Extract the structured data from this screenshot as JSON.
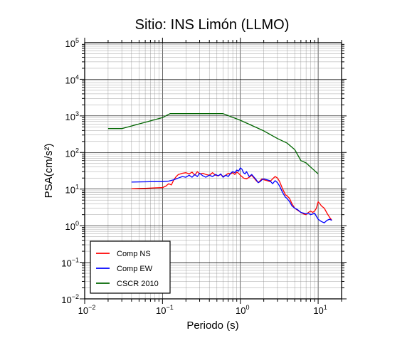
{
  "chart_data": {
    "type": "line",
    "title": "Sitio: INS Limón (LLMO)",
    "xlabel": "Periodo (s)",
    "ylabel": "PSA(cm/s²)",
    "xscale": "log",
    "yscale": "log",
    "xlim": [
      0.01,
      20
    ],
    "ylim": [
      0.01,
      100000
    ],
    "grid": true,
    "legend_position": "bottom-left",
    "x_ticks": [
      {
        "base": "10",
        "exp": "−2",
        "value": 0.01
      },
      {
        "base": "10",
        "exp": "−1",
        "value": 0.1
      },
      {
        "base": "10",
        "exp": "0",
        "value": 1
      },
      {
        "base": "10",
        "exp": "1",
        "value": 10
      }
    ],
    "y_ticks": [
      {
        "base": "10",
        "exp": "−2",
        "value": 0.01
      },
      {
        "base": "10",
        "exp": "−1",
        "value": 0.1
      },
      {
        "base": "10",
        "exp": "0",
        "value": 1
      },
      {
        "base": "10",
        "exp": "1",
        "value": 10
      },
      {
        "base": "10",
        "exp": "2",
        "value": 100
      },
      {
        "base": "10",
        "exp": "3",
        "value": 1000
      },
      {
        "base": "10",
        "exp": "4",
        "value": 10000
      },
      {
        "base": "10",
        "exp": "5",
        "value": 100000
      }
    ],
    "series": [
      {
        "name": "Comp NS",
        "color": "#ff0000",
        "points": [
          [
            0.04,
            10.2
          ],
          [
            0.06,
            10.5
          ],
          [
            0.08,
            10.8
          ],
          [
            0.1,
            11.0
          ],
          [
            0.11,
            12.0
          ],
          [
            0.12,
            14.0
          ],
          [
            0.13,
            13.0
          ],
          [
            0.14,
            18.0
          ],
          [
            0.15,
            22.0
          ],
          [
            0.16,
            25.0
          ],
          [
            0.18,
            27.0
          ],
          [
            0.2,
            28.0
          ],
          [
            0.22,
            26.0
          ],
          [
            0.24,
            29.0
          ],
          [
            0.26,
            24.0
          ],
          [
            0.28,
            30.0
          ],
          [
            0.3,
            26.0
          ],
          [
            0.33,
            27.0
          ],
          [
            0.36,
            25.0
          ],
          [
            0.4,
            24.0
          ],
          [
            0.44,
            28.0
          ],
          [
            0.48,
            24.0
          ],
          [
            0.52,
            23.0
          ],
          [
            0.56,
            25.0
          ],
          [
            0.6,
            22.0
          ],
          [
            0.65,
            24.0
          ],
          [
            0.7,
            27.0
          ],
          [
            0.75,
            26.0
          ],
          [
            0.8,
            28.0
          ],
          [
            0.85,
            25.0
          ],
          [
            0.9,
            29.0
          ],
          [
            0.95,
            27.0
          ],
          [
            1.0,
            24.0
          ],
          [
            1.05,
            22.0
          ],
          [
            1.1,
            20.0
          ],
          [
            1.2,
            19.0
          ],
          [
            1.3,
            21.0
          ],
          [
            1.4,
            24.0
          ],
          [
            1.5,
            20.0
          ],
          [
            1.6,
            17.0
          ],
          [
            1.7,
            15.0
          ],
          [
            1.8,
            17.0
          ],
          [
            1.9,
            19.0
          ],
          [
            2.0,
            18.0
          ],
          [
            2.2,
            17.0
          ],
          [
            2.4,
            16.0
          ],
          [
            2.6,
            19.0
          ],
          [
            2.8,
            22.0
          ],
          [
            3.0,
            20.0
          ],
          [
            3.2,
            16.0
          ],
          [
            3.5,
            10.0
          ],
          [
            3.8,
            7.0
          ],
          [
            4.0,
            6.5
          ],
          [
            4.3,
            5.5
          ],
          [
            4.6,
            4.0
          ],
          [
            5.0,
            3.0
          ],
          [
            5.5,
            2.6
          ],
          [
            6.0,
            2.3
          ],
          [
            6.5,
            2.1
          ],
          [
            7.0,
            2.0
          ],
          [
            7.5,
            2.3
          ],
          [
            8.0,
            2.5
          ],
          [
            8.5,
            2.3
          ],
          [
            9.0,
            2.5
          ],
          [
            9.5,
            3.0
          ],
          [
            10.0,
            4.5
          ],
          [
            10.5,
            4.0
          ],
          [
            11.0,
            3.5
          ],
          [
            12.0,
            3.0
          ],
          [
            13.0,
            2.2
          ],
          [
            14.0,
            1.7
          ],
          [
            15.0,
            1.4
          ]
        ]
      },
      {
        "name": "Comp EW",
        "color": "#0000ff",
        "points": [
          [
            0.04,
            15.5
          ],
          [
            0.06,
            15.8
          ],
          [
            0.08,
            16.0
          ],
          [
            0.1,
            16.0
          ],
          [
            0.12,
            16.5
          ],
          [
            0.14,
            18.0
          ],
          [
            0.16,
            20.0
          ],
          [
            0.18,
            22.0
          ],
          [
            0.2,
            21.0
          ],
          [
            0.22,
            24.0
          ],
          [
            0.24,
            21.0
          ],
          [
            0.26,
            25.0
          ],
          [
            0.28,
            22.0
          ],
          [
            0.3,
            27.0
          ],
          [
            0.33,
            23.0
          ],
          [
            0.36,
            21.0
          ],
          [
            0.4,
            24.0
          ],
          [
            0.44,
            22.0
          ],
          [
            0.48,
            25.0
          ],
          [
            0.52,
            23.0
          ],
          [
            0.56,
            26.0
          ],
          [
            0.6,
            21.0
          ],
          [
            0.65,
            24.0
          ],
          [
            0.7,
            22.0
          ],
          [
            0.75,
            27.0
          ],
          [
            0.8,
            30.0
          ],
          [
            0.85,
            28.0
          ],
          [
            0.9,
            33.0
          ],
          [
            0.95,
            31.0
          ],
          [
            1.0,
            38.0
          ],
          [
            1.05,
            35.0
          ],
          [
            1.1,
            28.0
          ],
          [
            1.15,
            26.0
          ],
          [
            1.2,
            30.0
          ],
          [
            1.3,
            22.0
          ],
          [
            1.4,
            25.0
          ],
          [
            1.5,
            21.0
          ],
          [
            1.6,
            18.0
          ],
          [
            1.7,
            15.0
          ],
          [
            1.8,
            16.0
          ],
          [
            1.9,
            18.0
          ],
          [
            2.0,
            19.0
          ],
          [
            2.2,
            18.0
          ],
          [
            2.4,
            17.0
          ],
          [
            2.6,
            14.0
          ],
          [
            2.8,
            17.0
          ],
          [
            3.0,
            15.0
          ],
          [
            3.2,
            12.0
          ],
          [
            3.5,
            8.0
          ],
          [
            3.8,
            6.0
          ],
          [
            4.0,
            5.5
          ],
          [
            4.3,
            4.5
          ],
          [
            4.6,
            3.5
          ],
          [
            5.0,
            3.0
          ],
          [
            5.5,
            2.7
          ],
          [
            6.0,
            2.3
          ],
          [
            6.5,
            2.2
          ],
          [
            7.0,
            2.1
          ],
          [
            7.5,
            2.2
          ],
          [
            8.0,
            2.0
          ],
          [
            8.5,
            2.1
          ],
          [
            9.0,
            2.2
          ],
          [
            9.5,
            1.8
          ],
          [
            10.0,
            1.5
          ],
          [
            11.0,
            1.3
          ],
          [
            12.0,
            1.2
          ],
          [
            13.0,
            1.4
          ],
          [
            14.0,
            1.5
          ],
          [
            15.0,
            1.4
          ]
        ]
      },
      {
        "name": "CSCR 2010",
        "color": "#006600",
        "points": [
          [
            0.02,
            450
          ],
          [
            0.03,
            450
          ],
          [
            0.1,
            900
          ],
          [
            0.125,
            1150
          ],
          [
            0.6,
            1150
          ],
          [
            1.0,
            760
          ],
          [
            2.0,
            390
          ],
          [
            3.0,
            240
          ],
          [
            4.0,
            180
          ],
          [
            5.0,
            120
          ],
          [
            6.0,
            60
          ],
          [
            7.0,
            52
          ],
          [
            8.0,
            40
          ],
          [
            10.0,
            26
          ]
        ]
      }
    ]
  }
}
